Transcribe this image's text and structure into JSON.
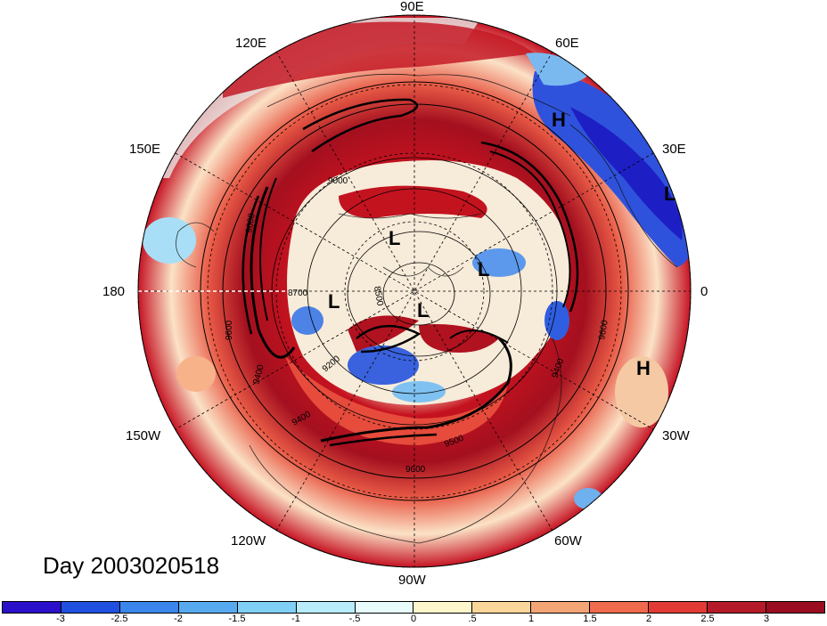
{
  "title": "Day 2003020518",
  "map": {
    "projection": "north polar stereographic",
    "center": "North Pole",
    "longitude_labels": [
      "90E",
      "60E",
      "30E",
      "0",
      "30W",
      "60W",
      "90W",
      "120W",
      "150W",
      "180",
      "150E",
      "120E"
    ],
    "contour_labels": [
      "9000",
      "9600",
      "8700",
      "8500",
      "9200",
      "9400",
      "9500",
      "9600",
      "9400",
      "9600",
      "9600",
      "9400"
    ],
    "pressure_centers": [
      "H",
      "L",
      "L",
      "L",
      "L",
      "L",
      "H"
    ]
  },
  "colorbar": {
    "colors": [
      "#2a10c8",
      "#2050e0",
      "#3a86ea",
      "#58aaf0",
      "#80cff6",
      "#b8ecfa",
      "#e8fcfc",
      "#fff6cc",
      "#fbd69a",
      "#f4a576",
      "#f06a4e",
      "#e23a34",
      "#b51a28",
      "#9a0c20"
    ],
    "tick_labels": [
      "-3",
      "-2.5",
      "-2",
      "-1.5",
      "-1",
      "-.5",
      "0",
      ".5",
      "1",
      "1.5",
      "2",
      "2.5",
      "3"
    ]
  }
}
